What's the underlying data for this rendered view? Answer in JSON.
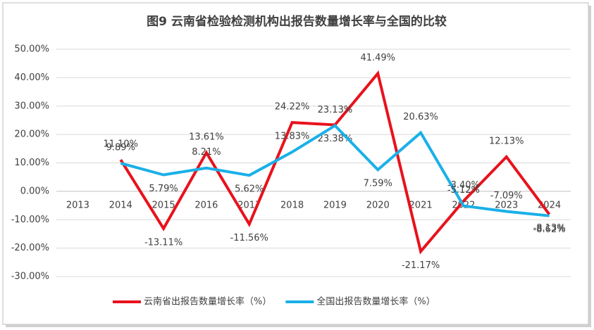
{
  "chart_data": {
    "type": "line",
    "title": "图9  云南省检验检测机构出报告数量增长率与全国的比较",
    "categories": [
      "2013",
      "2014",
      "2015",
      "2016",
      "2017",
      "2018",
      "2019",
      "2020",
      "2021",
      "2022",
      "2023",
      "2024"
    ],
    "series": [
      {
        "name": "云南省出报告数量增长率（%）",
        "color": "#e8121c",
        "values": [
          null,
          11.1,
          -13.11,
          13.61,
          -11.56,
          24.22,
          23.38,
          41.49,
          -21.17,
          -3.4,
          12.13,
          -8.13
        ],
        "value_labels": [
          null,
          "11.10%",
          "-13.11%",
          "13.61%",
          "-11.56%",
          "24.22%",
          "23.38%",
          "41.49%",
          "-21.17%",
          "-3.40%",
          "12.13%",
          "-8.13%"
        ]
      },
      {
        "name": "全国出报告数量增长率（%）",
        "color": "#1ab0e8",
        "values": [
          null,
          9.89,
          5.79,
          8.21,
          5.62,
          13.83,
          23.13,
          7.59,
          20.63,
          -5.12,
          -7.09,
          -8.62
        ],
        "value_labels": [
          null,
          "9.89%",
          "5.79%",
          "8.21%",
          "5.62%",
          "13.83%",
          "23.13%",
          "7.59%",
          "20.63%",
          "-5.12%",
          "-7.09%",
          "-8.62%"
        ]
      }
    ],
    "ylim": [
      -30,
      50
    ],
    "yticks": [
      {
        "value": -30,
        "label": "-30.00%"
      },
      {
        "value": -20,
        "label": "-20.00%"
      },
      {
        "value": -10,
        "label": "-10.00%"
      },
      {
        "value": 0,
        "label": "0.00%"
      },
      {
        "value": 10,
        "label": "10.00%"
      },
      {
        "value": 20,
        "label": "20.00%"
      },
      {
        "value": 30,
        "label": "30.00%"
      },
      {
        "value": 40,
        "label": "40.00%"
      },
      {
        "value": 50,
        "label": "50.00%"
      }
    ],
    "grid": true,
    "legend": "bottom"
  }
}
